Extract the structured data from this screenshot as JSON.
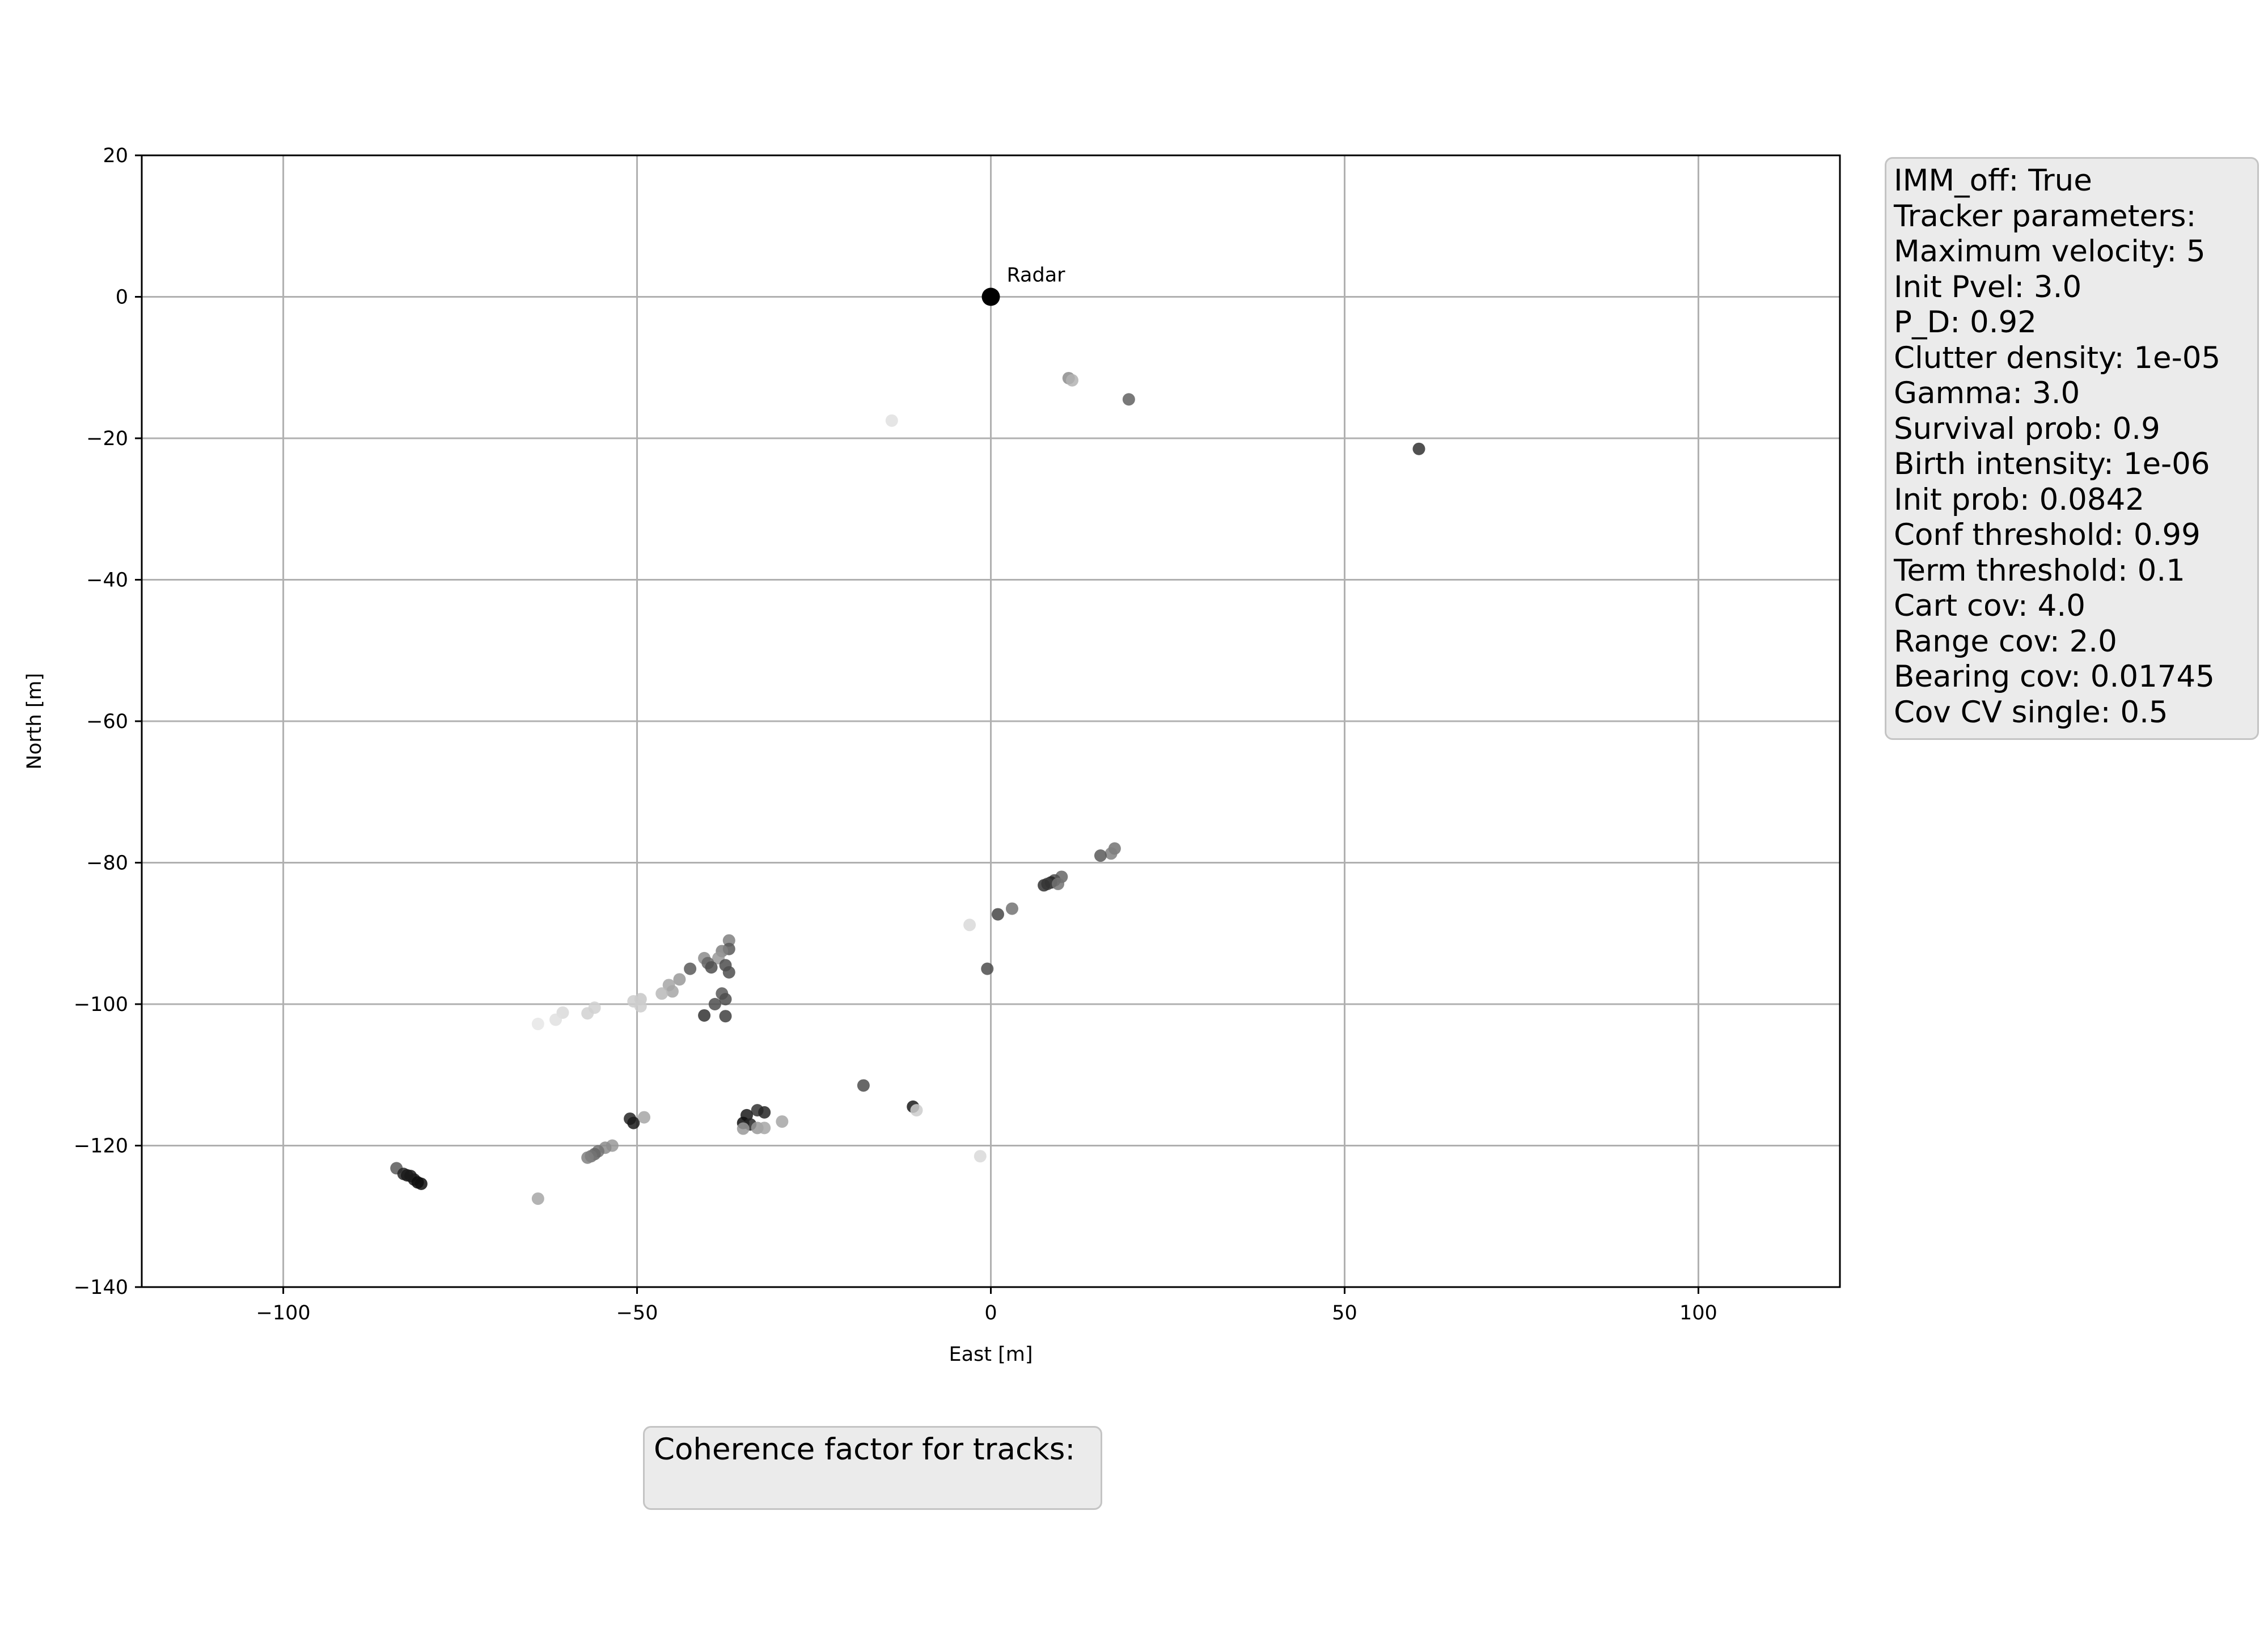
{
  "chart_data": {
    "type": "scatter",
    "xlabel": "East [m]",
    "ylabel": "North [m]",
    "xlim": [
      -120,
      120
    ],
    "ylim": [
      -140,
      20
    ],
    "xticks": [
      -100,
      -50,
      0,
      50,
      100
    ],
    "xtick_labels": [
      "−100",
      "−50",
      "0",
      "50",
      "100"
    ],
    "yticks": [
      20,
      0,
      -20,
      -40,
      -60,
      -80,
      -100,
      -120,
      -140
    ],
    "ytick_labels": [
      "20",
      "0",
      "−20",
      "−40",
      "−60",
      "−80",
      "−100",
      "−120",
      "−140"
    ],
    "grid": true,
    "radar": {
      "x": 0,
      "y": 0,
      "label": "Radar"
    },
    "points": [
      {
        "x": 11,
        "y": -11.5,
        "shade": 0.55
      },
      {
        "x": 11.5,
        "y": -11.8,
        "shade": 0.7
      },
      {
        "x": 19.5,
        "y": -14.5,
        "shade": 0.38
      },
      {
        "x": 60.5,
        "y": -21.5,
        "shade": 0.2
      },
      {
        "x": -14,
        "y": -17.5,
        "shade": 0.88
      },
      {
        "x": 17.5,
        "y": -78,
        "shade": 0.45
      },
      {
        "x": 17,
        "y": -78.7,
        "shade": 0.5
      },
      {
        "x": 15.5,
        "y": -79,
        "shade": 0.35
      },
      {
        "x": 10,
        "y": -82,
        "shade": 0.4
      },
      {
        "x": 9,
        "y": -82.5,
        "shade": 0.3
      },
      {
        "x": 8.5,
        "y": -82.8,
        "shade": 0.15
      },
      {
        "x": 8,
        "y": -83,
        "shade": 0.25
      },
      {
        "x": 9.5,
        "y": -83,
        "shade": 0.45
      },
      {
        "x": 7.5,
        "y": -83.2,
        "shade": 0.2
      },
      {
        "x": 3,
        "y": -86.5,
        "shade": 0.45
      },
      {
        "x": 1,
        "y": -87.3,
        "shade": 0.28
      },
      {
        "x": -3,
        "y": -88.8,
        "shade": 0.85
      },
      {
        "x": -0.5,
        "y": -95,
        "shade": 0.3
      },
      {
        "x": -37,
        "y": -91,
        "shade": 0.5
      },
      {
        "x": -37,
        "y": -92.2,
        "shade": 0.35
      },
      {
        "x": -38,
        "y": -92.5,
        "shade": 0.5
      },
      {
        "x": -38.5,
        "y": -93.5,
        "shade": 0.6
      },
      {
        "x": -40.5,
        "y": -93.5,
        "shade": 0.55
      },
      {
        "x": -40,
        "y": -94.2,
        "shade": 0.4
      },
      {
        "x": -37.5,
        "y": -94.5,
        "shade": 0.3
      },
      {
        "x": -39.5,
        "y": -94.8,
        "shade": 0.3
      },
      {
        "x": -42.5,
        "y": -95,
        "shade": 0.35
      },
      {
        "x": -37,
        "y": -95.5,
        "shade": 0.3
      },
      {
        "x": -44,
        "y": -96.5,
        "shade": 0.6
      },
      {
        "x": -45.5,
        "y": -97.3,
        "shade": 0.65
      },
      {
        "x": -45,
        "y": -98.2,
        "shade": 0.65
      },
      {
        "x": -46.5,
        "y": -98.5,
        "shade": 0.72
      },
      {
        "x": -38,
        "y": -98.5,
        "shade": 0.35
      },
      {
        "x": -37.5,
        "y": -99.3,
        "shade": 0.3
      },
      {
        "x": -39,
        "y": -100,
        "shade": 0.3
      },
      {
        "x": -49.5,
        "y": -99.3,
        "shade": 0.78
      },
      {
        "x": -50.5,
        "y": -99.6,
        "shade": 0.8
      },
      {
        "x": -49.5,
        "y": -100.3,
        "shade": 0.8
      },
      {
        "x": -56,
        "y": -100.5,
        "shade": 0.82
      },
      {
        "x": -57,
        "y": -101.3,
        "shade": 0.82
      },
      {
        "x": -60.5,
        "y": -101.2,
        "shade": 0.85
      },
      {
        "x": -61.5,
        "y": -102.2,
        "shade": 0.88
      },
      {
        "x": -64,
        "y": -102.8,
        "shade": 0.9
      },
      {
        "x": -40.5,
        "y": -101.6,
        "shade": 0.2
      },
      {
        "x": -37.5,
        "y": -101.7,
        "shade": 0.25
      },
      {
        "x": -18,
        "y": -111.5,
        "shade": 0.3
      },
      {
        "x": -11,
        "y": -114.5,
        "shade": 0.1
      },
      {
        "x": -10.5,
        "y": -115,
        "shade": 0.8
      },
      {
        "x": -33,
        "y": -115,
        "shade": 0.2
      },
      {
        "x": -32,
        "y": -115.3,
        "shade": 0.15
      },
      {
        "x": -34.5,
        "y": -115.7,
        "shade": 0.1
      },
      {
        "x": -35,
        "y": -116.8,
        "shade": 0.05
      },
      {
        "x": -34,
        "y": -117,
        "shade": 0.15
      },
      {
        "x": -29.5,
        "y": -116.6,
        "shade": 0.65
      },
      {
        "x": -33,
        "y": -117.5,
        "shade": 0.6
      },
      {
        "x": -32,
        "y": -117.5,
        "shade": 0.65
      },
      {
        "x": -35,
        "y": -117.6,
        "shade": 0.6
      },
      {
        "x": -51,
        "y": -116.2,
        "shade": 0.15
      },
      {
        "x": -50.5,
        "y": -116.8,
        "shade": 0.1
      },
      {
        "x": -49,
        "y": -116,
        "shade": 0.65
      },
      {
        "x": -53.5,
        "y": -120,
        "shade": 0.6
      },
      {
        "x": -54.5,
        "y": -120.3,
        "shade": 0.55
      },
      {
        "x": -55.5,
        "y": -120.8,
        "shade": 0.45
      },
      {
        "x": -56,
        "y": -121.2,
        "shade": 0.4
      },
      {
        "x": -56.5,
        "y": -121.5,
        "shade": 0.45
      },
      {
        "x": -57,
        "y": -121.7,
        "shade": 0.5
      },
      {
        "x": -84,
        "y": -123.2,
        "shade": 0.35
      },
      {
        "x": -83,
        "y": -124,
        "shade": 0.15
      },
      {
        "x": -82.5,
        "y": -124.2,
        "shade": 0.1
      },
      {
        "x": -82,
        "y": -124.3,
        "shade": 0.1
      },
      {
        "x": -81.5,
        "y": -124.8,
        "shade": 0.1
      },
      {
        "x": -81,
        "y": -125.2,
        "shade": 0.05
      },
      {
        "x": -80.5,
        "y": -125.4,
        "shade": 0.05
      },
      {
        "x": -64,
        "y": -127.5,
        "shade": 0.65
      },
      {
        "x": -1.5,
        "y": -121.5,
        "shade": 0.85
      }
    ]
  },
  "info_box": {
    "lines": [
      "IMM_off: True",
      "Tracker parameters:",
      "Maximum velocity: 5",
      "Init Pvel: 3.0",
      "P_D: 0.92",
      "Clutter density: 1e-05",
      "Gamma: 3.0",
      "Survival prob: 0.9",
      "Birth intensity: 1e-06",
      "Init prob: 0.0842",
      "Conf threshold: 0.99",
      "Term threshold: 0.1",
      "Cart cov: 4.0",
      "Range cov: 2.0",
      "Bearing cov: 0.01745",
      "Cov CV single: 0.5"
    ]
  },
  "coherence_box": {
    "title": "Coherence factor for tracks:"
  }
}
